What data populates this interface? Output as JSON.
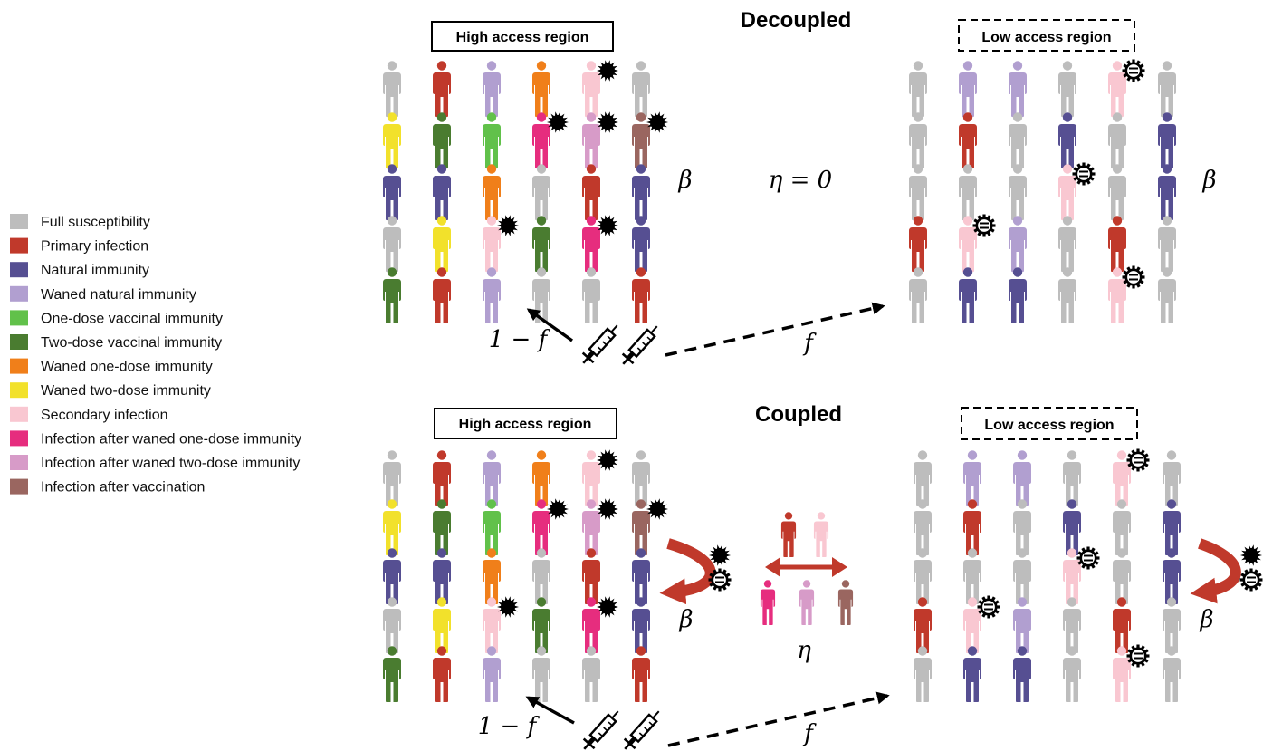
{
  "legend": [
    {
      "key": "full",
      "label": "Full susceptibility",
      "color": "#bdbdbd"
    },
    {
      "key": "primary",
      "label": "Primary infection",
      "color": "#c0392b"
    },
    {
      "key": "natural",
      "label": "Natural immunity",
      "color": "#564f92"
    },
    {
      "key": "waned_natural",
      "label": "Waned natural immunity",
      "color": "#b19fd0"
    },
    {
      "key": "one_dose",
      "label": "One-dose vaccinal immunity",
      "color": "#61c14a"
    },
    {
      "key": "two_dose",
      "label": "Two-dose vaccinal immunity",
      "color": "#4a7c30"
    },
    {
      "key": "waned_one",
      "label": "Waned one-dose immunity",
      "color": "#f07f1a"
    },
    {
      "key": "waned_two",
      "label": "Waned two-dose immunity",
      "color": "#f2e12b"
    },
    {
      "key": "secondary",
      "label": "Secondary infection",
      "color": "#f9c7d1"
    },
    {
      "key": "inf_waned_one",
      "label": "Infection after waned one-dose immunity",
      "color": "#e62d7e"
    },
    {
      "key": "inf_waned_two",
      "label": "Infection after waned two-dose immunity",
      "color": "#d79bc8"
    },
    {
      "key": "inf_vacc",
      "label": "Infection after vaccination",
      "color": "#9a6660"
    }
  ],
  "panels": {
    "decoupled": {
      "title": "Decoupled",
      "eta_label": "η = 0"
    },
    "coupled": {
      "title": "Coupled",
      "eta_label": "η"
    }
  },
  "regions": {
    "high_label": "High access region",
    "low_label": "Low access region",
    "high_grid": [
      [
        "full",
        "primary",
        "waned_natural",
        "waned_one",
        "secondary",
        "full"
      ],
      [
        "waned_two",
        "two_dose",
        "one_dose",
        "inf_waned_one",
        "inf_waned_two",
        "inf_vacc"
      ],
      [
        "natural",
        "natural",
        "waned_one",
        "full",
        "primary",
        "natural"
      ],
      [
        "full",
        "waned_two",
        "secondary",
        "two_dose",
        "inf_waned_one",
        "natural"
      ],
      [
        "two_dose",
        "primary",
        "waned_natural",
        "full",
        "full",
        "primary"
      ]
    ],
    "high_virus": [
      [
        0,
        4
      ],
      [
        1,
        3
      ],
      [
        1,
        4
      ],
      [
        1,
        5
      ],
      [
        3,
        2
      ],
      [
        3,
        4
      ]
    ],
    "low_grid": [
      [
        "full",
        "waned_natural",
        "waned_natural",
        "full",
        "secondary",
        "full"
      ],
      [
        "full",
        "primary",
        "full",
        "natural",
        "full",
        "natural"
      ],
      [
        "full",
        "full",
        "full",
        "secondary",
        "full",
        "natural"
      ],
      [
        "primary",
        "secondary",
        "waned_natural",
        "full",
        "primary",
        "full"
      ],
      [
        "full",
        "natural",
        "natural",
        "full",
        "secondary",
        "full"
      ]
    ],
    "low_virus": [
      [
        0,
        4
      ],
      [
        2,
        3
      ],
      [
        3,
        1
      ],
      [
        4,
        4
      ]
    ]
  },
  "labels": {
    "beta": "β",
    "one_minus_f": "1 − f",
    "f": "f"
  },
  "mixing": {
    "top": [
      "primary",
      "secondary"
    ],
    "bottom": [
      "inf_waned_one",
      "inf_waned_two",
      "inf_vacc"
    ]
  }
}
